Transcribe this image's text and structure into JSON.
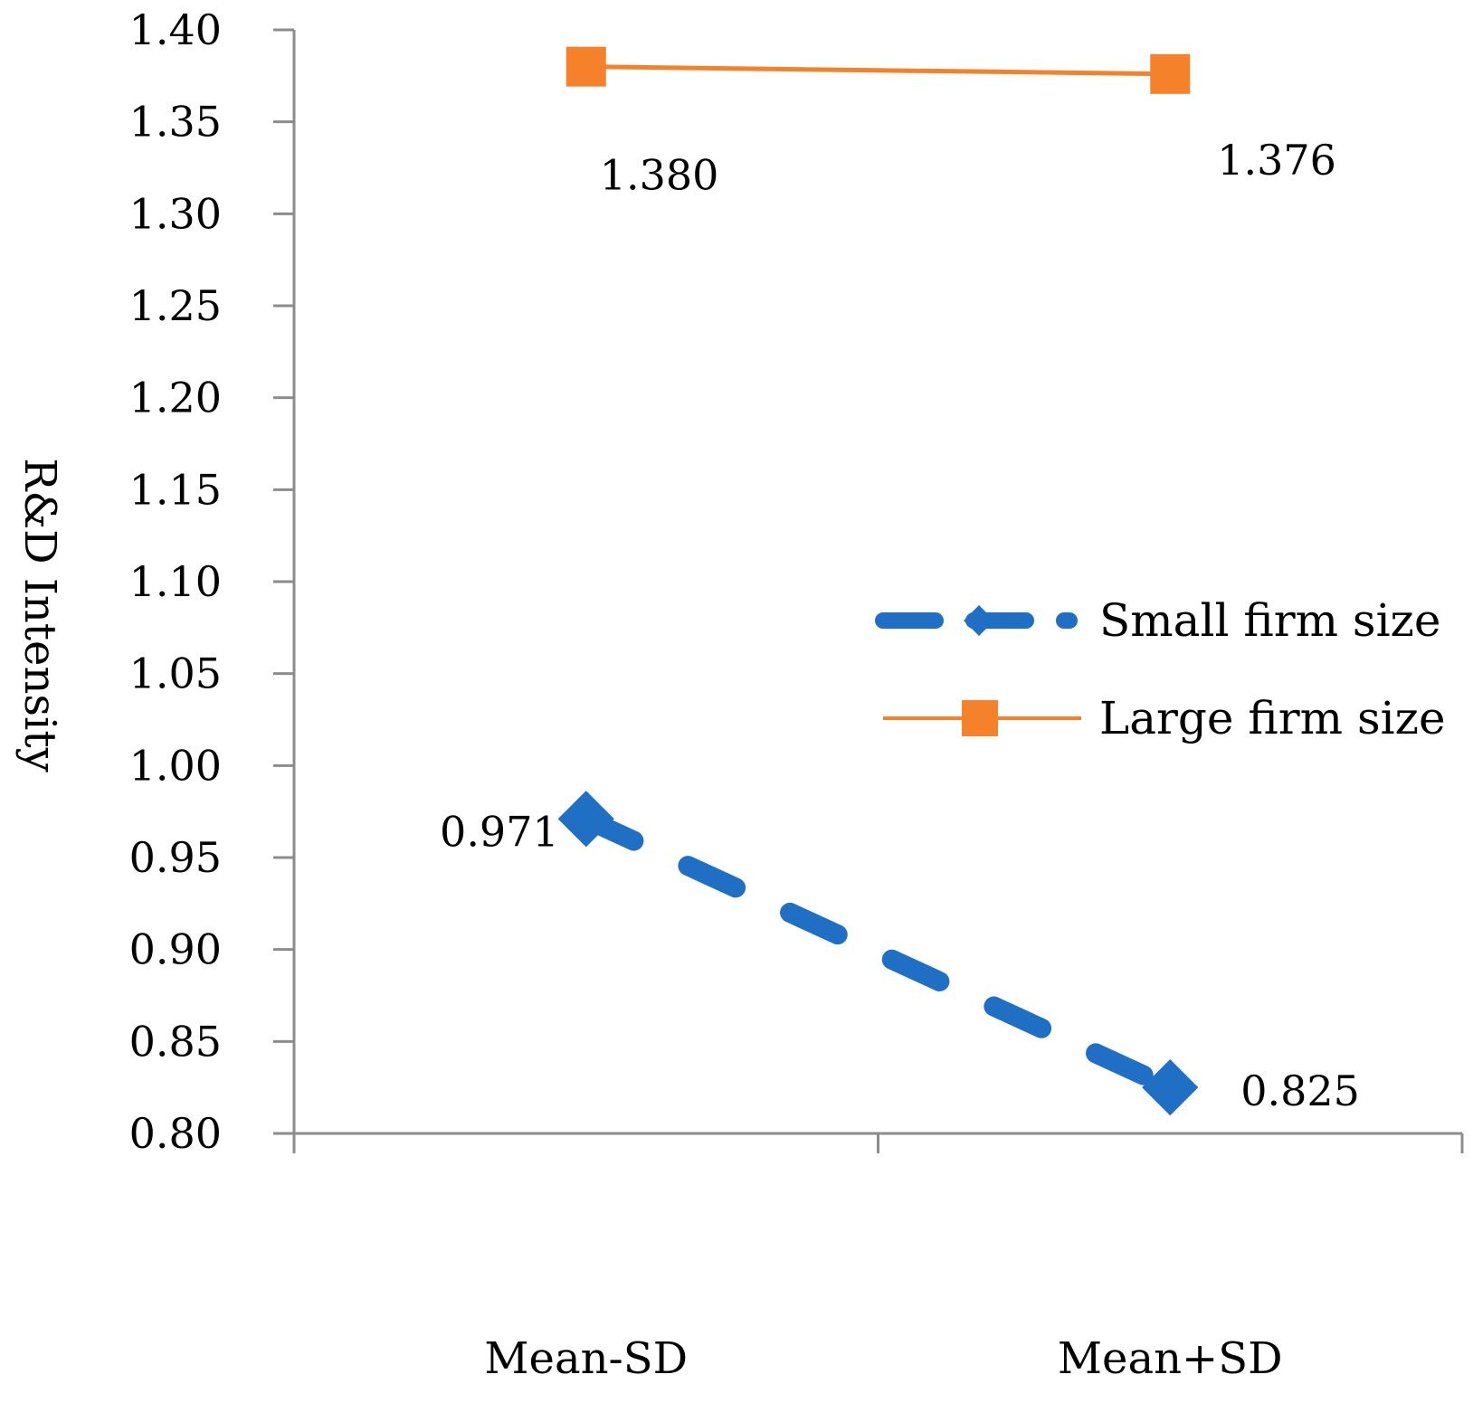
{
  "chart_data": {
    "type": "line",
    "title": "",
    "xlabel": "",
    "ylabel": "R&D Intensity",
    "categories": [
      "Mean-SD",
      "Mean+SD"
    ],
    "ylim": [
      0.8,
      1.4
    ],
    "ytick_step": 0.05,
    "yticks": [
      "0.80",
      "0.85",
      "0.90",
      "0.95",
      "1.00",
      "1.05",
      "1.10",
      "1.15",
      "1.20",
      "1.25",
      "1.30",
      "1.35",
      "1.40"
    ],
    "grid": false,
    "legend_position": "right",
    "series": [
      {
        "name": "Small firm size",
        "values": [
          0.971,
          0.825
        ],
        "labels": [
          "0.971",
          "0.825"
        ],
        "color": "#1f6fc5",
        "line_style": "dashed",
        "marker": "diamond"
      },
      {
        "name": "Large firm size",
        "values": [
          1.38,
          1.376
        ],
        "labels": [
          "1.380",
          "1.376"
        ],
        "color": "#f5822a",
        "line_style": "solid",
        "marker": "square"
      }
    ]
  }
}
